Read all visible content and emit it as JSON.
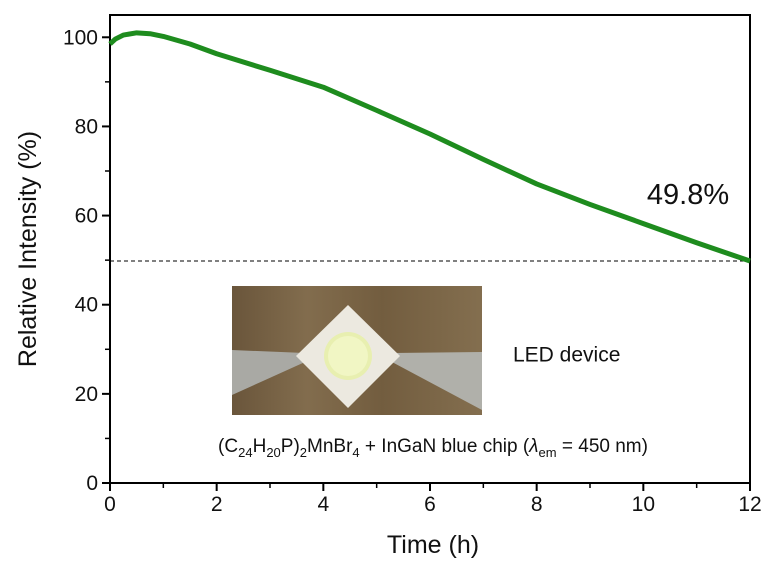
{
  "chart_data": {
    "type": "line",
    "xlabel": "Time (h)",
    "ylabel": "Relative Intensity (%)",
    "x": [
      0,
      0.1,
      0.25,
      0.5,
      0.75,
      1,
      1.5,
      2,
      3,
      4,
      5,
      6,
      7,
      8,
      9,
      10,
      11,
      12
    ],
    "series": [
      {
        "name": "LED device",
        "color": "#1e8c1e",
        "values": [
          98.5,
          99.6,
          100.5,
          101,
          100.8,
          100.2,
          98.5,
          96.3,
          92.6,
          88.8,
          83.6,
          78.3,
          72.6,
          67.1,
          62.5,
          58.2,
          53.9,
          49.8
        ]
      }
    ],
    "xlim": [
      0,
      12
    ],
    "xticks": [
      0,
      2,
      4,
      6,
      8,
      10,
      12
    ],
    "xminorticks": [
      1,
      3,
      5,
      7,
      9,
      11
    ],
    "ylim": [
      0,
      105
    ],
    "yticks": [
      0,
      20,
      40,
      60,
      80,
      100
    ],
    "yminorticks": [
      10,
      30,
      50,
      70,
      90
    ],
    "reference_line": 49.8,
    "end_label": "49.8%",
    "inset_label": "LED device",
    "formula": [
      "(C",
      "24",
      "H",
      "20",
      "P)",
      "2",
      "MnBr",
      "4",
      " + InGaN blue chip (",
      "λ",
      "em",
      " = 450 nm)"
    ]
  }
}
